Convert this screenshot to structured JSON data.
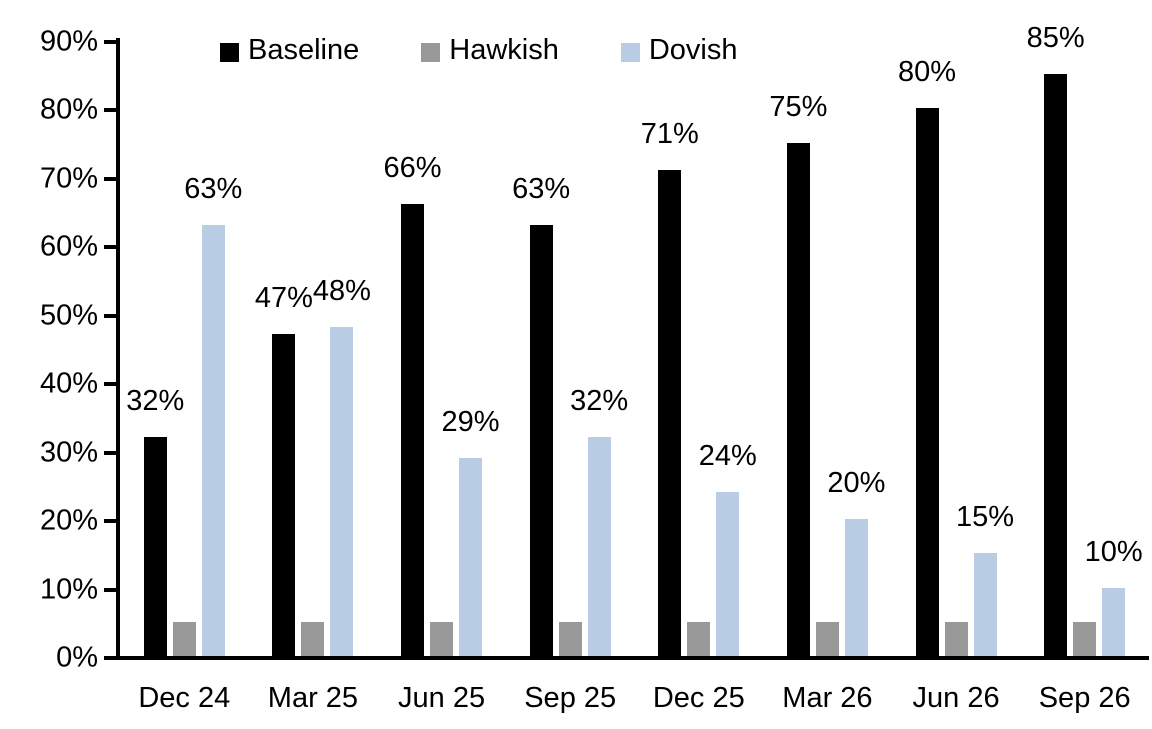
{
  "chart_data": {
    "type": "bar",
    "title": "",
    "xlabel": "",
    "ylabel": "",
    "categories": [
      "Dec 24",
      "Mar 25",
      "Jun 25",
      "Sep 25",
      "Dec 25",
      "Mar 26",
      "Jun 26",
      "Sep 26"
    ],
    "series": [
      {
        "name": "Baseline",
        "color": "#000000",
        "values": [
          32,
          47,
          66,
          63,
          71,
          75,
          80,
          85
        ],
        "labels": [
          "32%",
          "47%",
          "66%",
          "63%",
          "71%",
          "75%",
          "80%",
          "85%"
        ]
      },
      {
        "name": "Hawkish",
        "color": "#999999",
        "values": [
          5,
          5,
          5,
          5,
          5,
          5,
          5,
          5
        ],
        "labels": []
      },
      {
        "name": "Dovish",
        "color": "#b8cce4",
        "values": [
          63,
          48,
          29,
          32,
          24,
          20,
          15,
          10
        ],
        "labels": [
          "63%",
          "48%",
          "29%",
          "32%",
          "24%",
          "20%",
          "15%",
          "10%"
        ]
      }
    ],
    "ylim": [
      0,
      90
    ],
    "ytick_step": 10,
    "ytick_labels": [
      "0%",
      "10%",
      "20%",
      "30%",
      "40%",
      "50%",
      "60%",
      "70%",
      "80%",
      "90%"
    ],
    "grid": false,
    "legend_position": "top",
    "axis_color": "#000000"
  }
}
